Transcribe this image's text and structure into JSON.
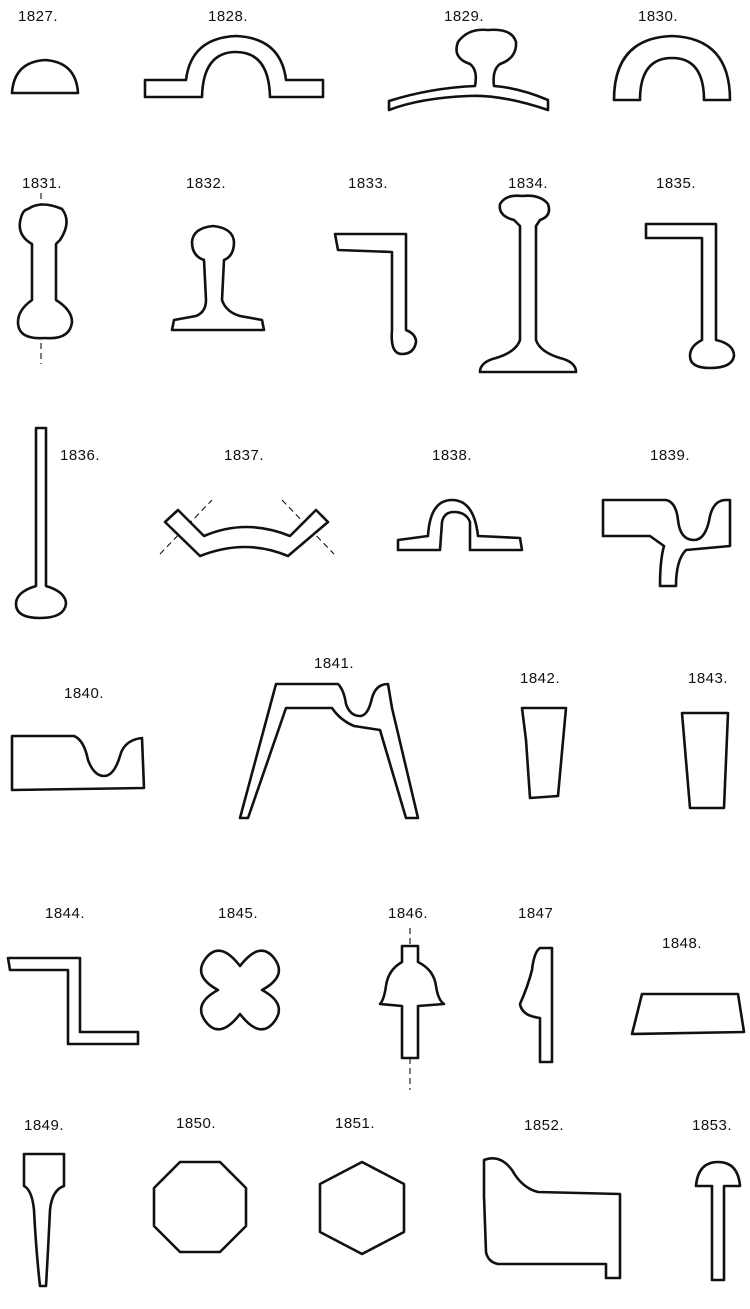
{
  "figures": [
    {
      "id": "1827",
      "label": "1827.",
      "shape": "half-round-section"
    },
    {
      "id": "1828",
      "label": "1828.",
      "shape": "arched-strip-section"
    },
    {
      "id": "1829",
      "label": "1829.",
      "shape": "bulb-on-curved-web-section"
    },
    {
      "id": "1830",
      "label": "1830.",
      "shape": "half-ring-section"
    },
    {
      "id": "1831",
      "label": "1831.",
      "shape": "double-bulb-bar-section"
    },
    {
      "id": "1832",
      "label": "1832.",
      "shape": "short-flat-bottom-rail-section"
    },
    {
      "id": "1833",
      "label": "1833.",
      "shape": "bulb-angle-section"
    },
    {
      "id": "1834",
      "label": "1834.",
      "shape": "flat-bottom-rail-section"
    },
    {
      "id": "1835",
      "label": "1835.",
      "shape": "bulb-angle-section"
    },
    {
      "id": "1836",
      "label": "1836.",
      "shape": "bulb-flat-section"
    },
    {
      "id": "1837",
      "label": "1837.",
      "shape": "trough-section"
    },
    {
      "id": "1838",
      "label": "1838.",
      "shape": "top-hat-section"
    },
    {
      "id": "1839",
      "label": "1839.",
      "shape": "grooved-step-section"
    },
    {
      "id": "1840",
      "label": "1840.",
      "shape": "grooved-flat-section"
    },
    {
      "id": "1841",
      "label": "1841.",
      "shape": "splayed-channel-section"
    },
    {
      "id": "1842",
      "label": "1842.",
      "shape": "tapered-bar-section"
    },
    {
      "id": "1843",
      "label": "1843.",
      "shape": "tapered-bar-section"
    },
    {
      "id": "1844",
      "label": "1844.",
      "shape": "z-bar-section"
    },
    {
      "id": "1845",
      "label": "1845.",
      "shape": "cruciform-section"
    },
    {
      "id": "1846",
      "label": "1846.",
      "shape": "bell-top-tee-section"
    },
    {
      "id": "1847",
      "label": "1847",
      "shape": "moulded-flat-section"
    },
    {
      "id": "1848",
      "label": "1848.",
      "shape": "trapezoid-section"
    },
    {
      "id": "1849",
      "label": "1849.",
      "shape": "tapered-tee-section"
    },
    {
      "id": "1850",
      "label": "1850.",
      "shape": "octagon-section"
    },
    {
      "id": "1851",
      "label": "1851.",
      "shape": "hexagon-section"
    },
    {
      "id": "1852",
      "label": "1852.",
      "shape": "moulded-step-section"
    },
    {
      "id": "1853",
      "label": "1853.",
      "shape": "half-round-tee-section"
    }
  ]
}
